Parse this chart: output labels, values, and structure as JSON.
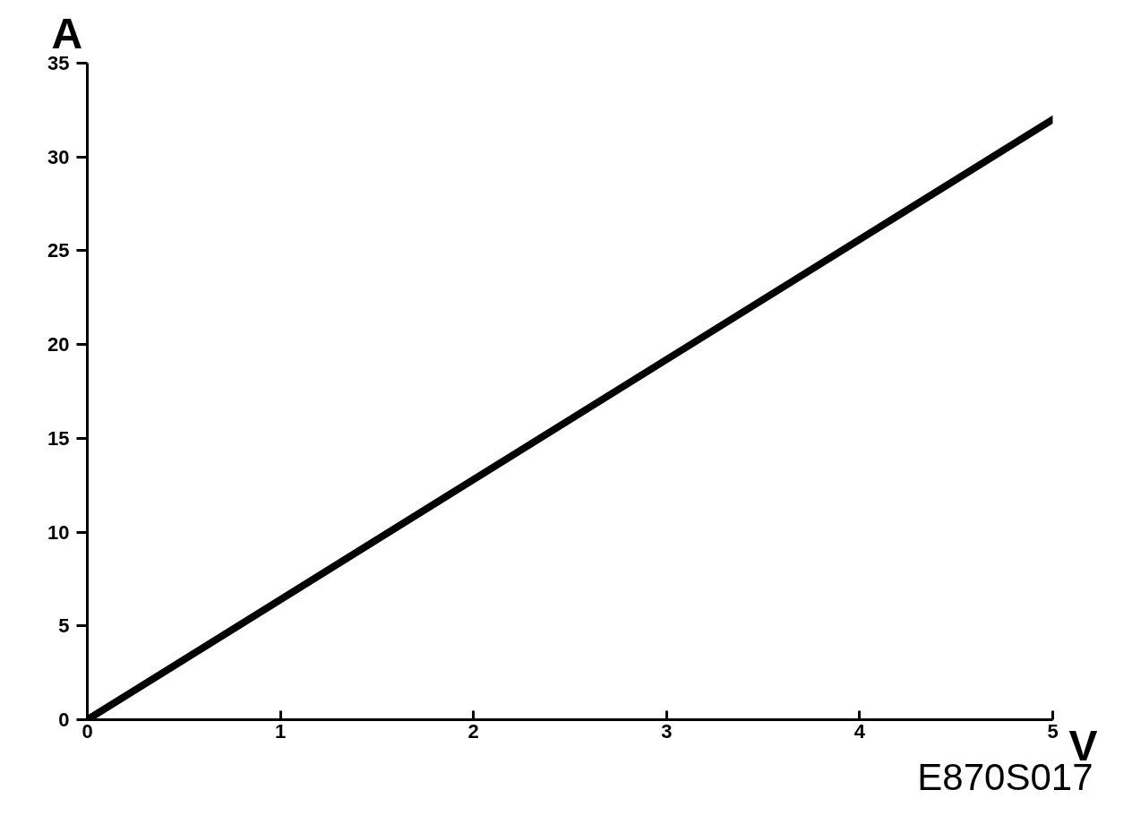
{
  "chart_data": {
    "type": "line",
    "xlabel": "V",
    "ylabel": "A",
    "x": [
      0,
      5
    ],
    "series": [
      {
        "color": "#000000",
        "values": [
          0,
          32
        ]
      }
    ],
    "xlim": [
      0,
      5
    ],
    "xticks": [
      0,
      1,
      2,
      3,
      4,
      5
    ],
    "ylim": [
      0,
      35
    ],
    "yticks": [
      0,
      5,
      10,
      15,
      20,
      25,
      30,
      35
    ],
    "grid": false,
    "marker": "none",
    "line_style": "solid",
    "annotations": [
      "E870S017"
    ]
  }
}
